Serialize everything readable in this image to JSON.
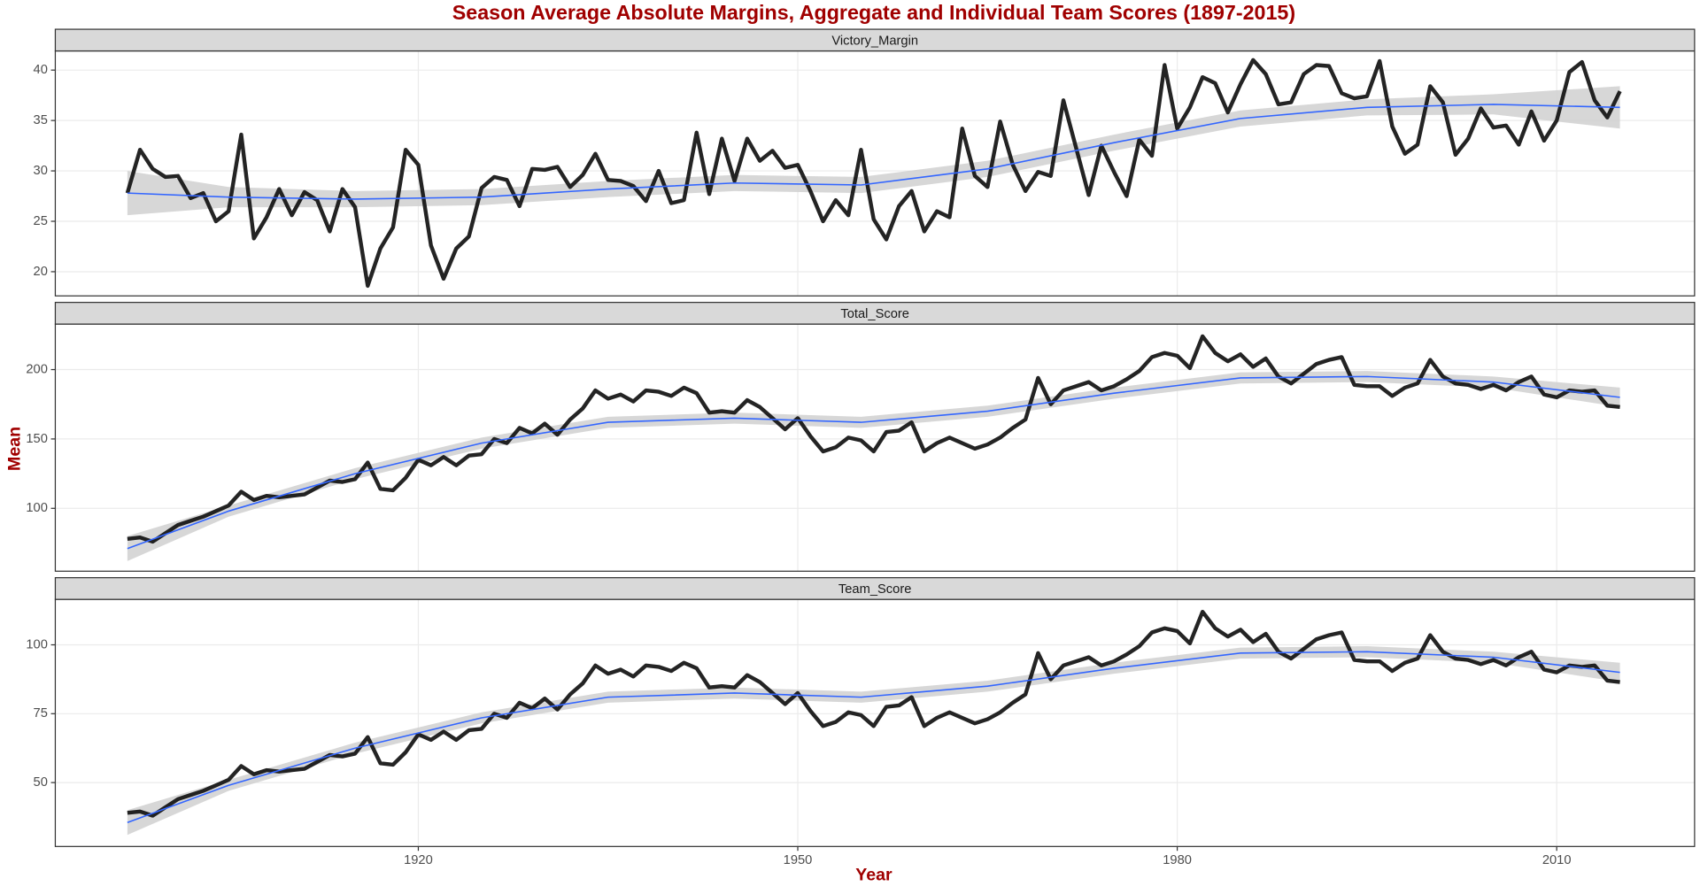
{
  "chart_data": {
    "type": "line",
    "title": "Season Average Absolute Margins, Aggregate and Individual Team Scores (1897-2015)",
    "xlabel": "Year",
    "ylabel": "Mean",
    "x": [
      1897,
      1898,
      1899,
      1900,
      1901,
      1902,
      1903,
      1904,
      1905,
      1906,
      1907,
      1908,
      1909,
      1910,
      1911,
      1912,
      1913,
      1914,
      1915,
      1916,
      1917,
      1918,
      1919,
      1920,
      1921,
      1922,
      1923,
      1924,
      1925,
      1926,
      1927,
      1928,
      1929,
      1930,
      1931,
      1932,
      1933,
      1934,
      1935,
      1936,
      1937,
      1938,
      1939,
      1940,
      1941,
      1942,
      1943,
      1944,
      1945,
      1946,
      1947,
      1948,
      1949,
      1950,
      1951,
      1952,
      1953,
      1954,
      1955,
      1956,
      1957,
      1958,
      1959,
      1960,
      1961,
      1962,
      1963,
      1964,
      1965,
      1966,
      1967,
      1968,
      1969,
      1970,
      1971,
      1972,
      1973,
      1974,
      1975,
      1976,
      1977,
      1978,
      1979,
      1980,
      1981,
      1982,
      1983,
      1984,
      1985,
      1986,
      1987,
      1988,
      1989,
      1990,
      1991,
      1992,
      1993,
      1994,
      1995,
      1996,
      1997,
      1998,
      1999,
      2000,
      2001,
      2002,
      2003,
      2004,
      2005,
      2006,
      2007,
      2008,
      2009,
      2010,
      2011,
      2012,
      2013,
      2014,
      2015
    ],
    "xlim": [
      1891.3,
      2020.9
    ],
    "xticks": [
      1920,
      1950,
      1980,
      2010
    ],
    "line_color": "#111111",
    "smooth_color": "#3366ff",
    "band_color": "#d0d0d0",
    "grid": true,
    "panels": [
      {
        "title": "Victory_Margin",
        "values": [
          27.8,
          32.1,
          30.2,
          29.4,
          29.5,
          27.3,
          27.8,
          25.0,
          26.0,
          33.6,
          23.3,
          25.4,
          28.2,
          25.6,
          27.9,
          27.1,
          24.0,
          28.2,
          26.4,
          18.6,
          22.3,
          24.4,
          32.1,
          30.6,
          22.6,
          19.3,
          22.3,
          23.5,
          28.3,
          29.4,
          29.1,
          26.5,
          30.2,
          30.1,
          30.4,
          28.4,
          29.6,
          31.7,
          29.1,
          29.0,
          28.5,
          27.0,
          30.0,
          26.8,
          27.1,
          33.8,
          27.7,
          33.2,
          29.0,
          33.2,
          31.0,
          32.0,
          30.3,
          30.6,
          28.0,
          25.0,
          27.1,
          25.6,
          32.1,
          25.2,
          23.2,
          26.5,
          28.0,
          24.0,
          26.0,
          25.4,
          34.2,
          29.5,
          28.4,
          34.9,
          30.6,
          28.0,
          29.9,
          29.5,
          37.0,
          32.3,
          27.6,
          32.5,
          29.9,
          27.5,
          33.1,
          31.5,
          40.5,
          34.2,
          36.3,
          39.3,
          38.7,
          35.8,
          38.6,
          41.0,
          39.6,
          36.6,
          36.8,
          39.6,
          40.5,
          40.4,
          37.7,
          37.2,
          37.4,
          40.9,
          34.4,
          31.7,
          32.6,
          38.4,
          36.8,
          31.6,
          33.2,
          36.2,
          34.3,
          34.5,
          32.6,
          35.9,
          33.0,
          35.0,
          39.8,
          40.8,
          37.0,
          35.3,
          37.9
        ],
        "ylim": [
          17.6,
          41.9
        ],
        "yticks": [
          20,
          25,
          30,
          35,
          40
        ],
        "smooth": {
          "x": [
            1897,
            1905,
            1915,
            1925,
            1935,
            1945,
            1955,
            1965,
            1975,
            1985,
            1995,
            2005,
            2015
          ],
          "values": [
            27.8,
            27.4,
            27.2,
            27.4,
            28.2,
            28.8,
            28.6,
            30.2,
            32.8,
            35.2,
            36.3,
            36.6,
            36.3
          ],
          "lower": [
            25.6,
            26.4,
            26.4,
            26.6,
            27.4,
            28.0,
            27.8,
            29.4,
            32.0,
            34.4,
            35.5,
            35.6,
            34.2
          ],
          "upper": [
            30.0,
            28.4,
            28.0,
            28.2,
            29.0,
            29.6,
            29.4,
            31.0,
            33.6,
            36.0,
            37.1,
            37.6,
            38.4
          ]
        }
      },
      {
        "title": "Total_Score",
        "values": [
          78,
          79,
          76,
          82,
          88,
          91,
          94,
          98,
          102,
          112,
          106,
          109,
          108,
          109,
          110,
          115,
          120,
          119,
          121,
          133,
          114,
          113,
          122,
          135,
          131,
          137,
          131,
          138,
          139,
          150,
          147,
          158,
          154,
          161,
          153,
          164,
          172,
          185,
          179,
          182,
          177,
          185,
          184,
          181,
          187,
          183,
          169,
          170,
          169,
          178,
          173,
          165,
          157,
          165,
          152,
          141,
          144,
          151,
          149,
          141,
          155,
          156,
          162,
          141,
          147,
          151,
          147,
          143,
          146,
          151,
          158,
          164,
          194,
          175,
          185,
          188,
          191,
          185,
          188,
          193,
          199,
          209,
          212,
          210,
          201,
          224,
          212,
          206,
          211,
          202,
          208,
          195,
          190,
          197,
          204,
          207,
          209,
          189,
          188,
          188,
          181,
          187,
          190,
          207,
          195,
          190,
          189,
          186,
          189,
          185,
          191,
          195,
          182,
          180,
          185,
          184,
          185,
          174,
          173
        ],
        "ylim": [
          54.7,
          232.8
        ],
        "yticks": [
          100,
          150,
          200
        ],
        "smooth": {
          "x": [
            1897,
            1905,
            1915,
            1925,
            1935,
            1945,
            1955,
            1965,
            1975,
            1985,
            1995,
            2005,
            2015
          ],
          "values": [
            71,
            98,
            125,
            147,
            162,
            165,
            162,
            170,
            183,
            194,
            195,
            191,
            180
          ],
          "lower": [
            62,
            94,
            121,
            143,
            158,
            161,
            158,
            166,
            179,
            190,
            191,
            187,
            173
          ],
          "upper": [
            80,
            102,
            129,
            151,
            166,
            169,
            166,
            174,
            187,
            198,
            199,
            195,
            187
          ]
        }
      },
      {
        "title": "Team_Score",
        "values": [
          39,
          39.5,
          38,
          41,
          44,
          45.5,
          47,
          49,
          51,
          56,
          53,
          54.5,
          54,
          54.5,
          55,
          57.5,
          60,
          59.5,
          60.5,
          66.5,
          57,
          56.5,
          61,
          67.5,
          65.5,
          68.5,
          65.5,
          69,
          69.5,
          75,
          73.5,
          79,
          77,
          80.5,
          76.5,
          82,
          86,
          92.5,
          89.5,
          91,
          88.5,
          92.5,
          92,
          90.5,
          93.5,
          91.5,
          84.5,
          85,
          84.5,
          89,
          86.5,
          82.5,
          78.5,
          82.5,
          76,
          70.5,
          72,
          75.5,
          74.5,
          70.5,
          77.5,
          78,
          81,
          70.5,
          73.5,
          75.5,
          73.5,
          71.5,
          73,
          75.5,
          79,
          82,
          97,
          87.5,
          92.5,
          94,
          95.5,
          92.5,
          94,
          96.5,
          99.5,
          104.5,
          106,
          105,
          100.5,
          112,
          106,
          103,
          105.5,
          101,
          104,
          97.5,
          95,
          98.5,
          102,
          103.5,
          104.5,
          94.5,
          94,
          94,
          90.5,
          93.5,
          95,
          103.5,
          97.5,
          95,
          94.5,
          93,
          94.5,
          92.5,
          95.5,
          97.5,
          91,
          90,
          92.5,
          92,
          92.5,
          87,
          86.5
        ],
        "ylim": [
          26.8,
          116.5
        ],
        "yticks": [
          50,
          75,
          100
        ],
        "smooth": {
          "x": [
            1897,
            1905,
            1915,
            1925,
            1935,
            1945,
            1955,
            1965,
            1975,
            1985,
            1995,
            2005,
            2015
          ],
          "values": [
            35.5,
            49,
            62.5,
            73.5,
            81,
            82.5,
            81,
            85,
            91.5,
            97,
            97.5,
            95.5,
            90
          ],
          "lower": [
            31,
            47,
            60.5,
            71.5,
            79,
            80.5,
            79,
            83,
            89.5,
            95,
            95.5,
            93.5,
            86.5
          ],
          "upper": [
            40,
            51,
            64.5,
            75.5,
            83,
            84.5,
            83,
            87,
            93.5,
            99,
            99.5,
            97.5,
            93.5
          ]
        }
      }
    ]
  }
}
